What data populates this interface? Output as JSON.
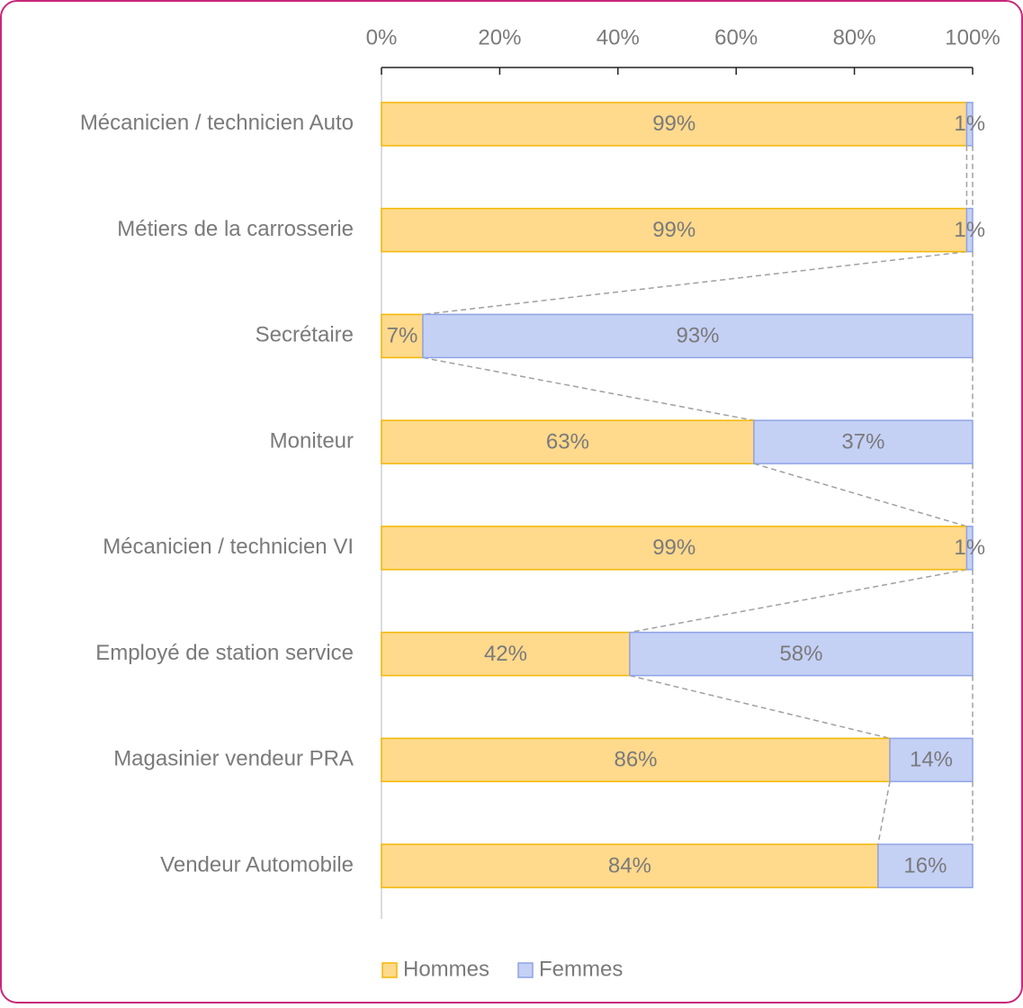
{
  "chart_data": {
    "type": "stacked_bar_horizontal",
    "categories": [
      "Mécanicien / technicien Auto",
      "Métiers de la carrosserie",
      "Secrétaire",
      "Moniteur",
      "Mécanicien / technicien VI",
      "Employé de station service",
      "Magasinier vendeur PRA",
      "Vendeur Automobile"
    ],
    "series": [
      {
        "name": "Hommes",
        "color": "#ffd98c",
        "stroke": "#f2b705",
        "values": [
          99,
          99,
          7,
          63,
          99,
          42,
          86,
          84
        ],
        "value_labels": [
          "99%",
          "99%",
          "7%",
          "63%",
          "99%",
          "42%",
          "86%",
          "84%"
        ]
      },
      {
        "name": "Femmes",
        "color": "#c5d0f5",
        "stroke": "#8fa4e6",
        "values": [
          1,
          1,
          93,
          37,
          1,
          58,
          14,
          16
        ],
        "value_labels": [
          "1%",
          "1%",
          "93%",
          "37%",
          "1%",
          "58%",
          "14%",
          "16%"
        ]
      }
    ],
    "xlim": [
      0,
      100
    ],
    "xticks": [
      {
        "value": 0,
        "label": "0%"
      },
      {
        "value": 20,
        "label": "20%"
      },
      {
        "value": 40,
        "label": "40%"
      },
      {
        "value": 60,
        "label": "60%"
      },
      {
        "value": 80,
        "label": "80%"
      },
      {
        "value": 100,
        "label": "100%"
      }
    ],
    "legend": "bottom"
  }
}
